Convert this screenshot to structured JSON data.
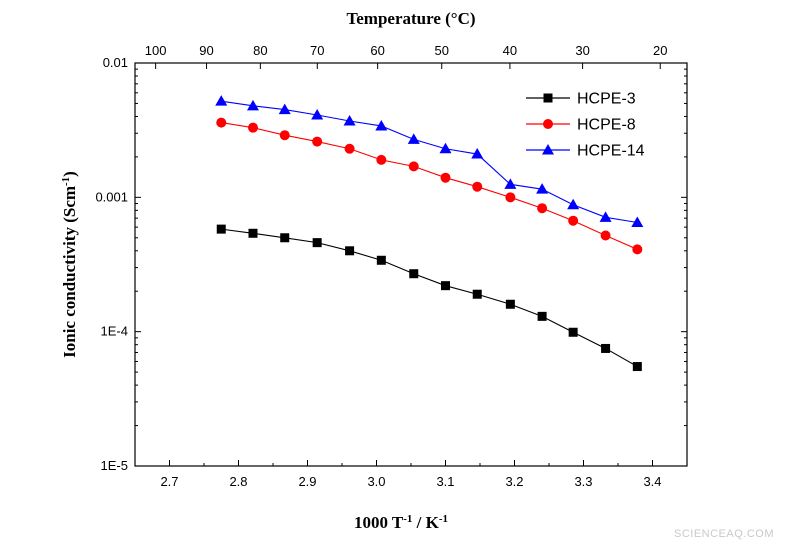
{
  "chart_data": {
    "type": "line",
    "ylabel_parts": [
      "Ionic conductivity (Scm",
      "-1",
      ")"
    ],
    "xlabel_parts": [
      "1000 T",
      "-1",
      " / K",
      "-1"
    ],
    "top_xlabel": "Temperature (°C)",
    "x_scale": "linear",
    "y_scale": "log",
    "xlim": [
      2.65,
      3.45
    ],
    "ylim": [
      1e-05,
      0.01
    ],
    "x_ticks": [
      2.7,
      2.8,
      2.9,
      3.0,
      3.1,
      3.2,
      3.3,
      3.4
    ],
    "x_tick_labels": [
      "2.7",
      "2.8",
      "2.9",
      "3.0",
      "3.1",
      "3.2",
      "3.3",
      "3.4"
    ],
    "y_ticks": [
      1e-05,
      0.0001,
      0.001,
      0.01
    ],
    "y_tick_labels": [
      "1E-5",
      "1E-4",
      "0.001",
      "0.01"
    ],
    "top_ticks_celsius": [
      100,
      90,
      80,
      70,
      60,
      50,
      40,
      30,
      20
    ],
    "top_tick_labels": [
      "100",
      "90",
      "80",
      "70",
      "60",
      "50",
      "40",
      "30",
      "20"
    ],
    "grid": false,
    "legend_position": "top-right",
    "series": [
      {
        "name": "HCPE-3",
        "color": "#000000",
        "marker": "square",
        "x": [
          2.775,
          2.821,
          2.867,
          2.914,
          2.961,
          3.007,
          3.054,
          3.1,
          3.146,
          3.194,
          3.24,
          3.285,
          3.332,
          3.378
        ],
        "y": [
          0.00058,
          0.00054,
          0.0005,
          0.00046,
          0.0004,
          0.00034,
          0.00027,
          0.00022,
          0.00019,
          0.00016,
          0.00013,
          9.9e-05,
          7.5e-05,
          5.5e-05
        ]
      },
      {
        "name": "HCPE-8",
        "color": "#ff0000",
        "marker": "circle",
        "x": [
          2.775,
          2.821,
          2.867,
          2.914,
          2.961,
          3.007,
          3.054,
          3.1,
          3.146,
          3.194,
          3.24,
          3.285,
          3.332,
          3.378
        ],
        "y": [
          0.0036,
          0.0033,
          0.0029,
          0.0026,
          0.0023,
          0.0019,
          0.0017,
          0.0014,
          0.0012,
          0.001,
          0.00083,
          0.00067,
          0.00052,
          0.00041
        ]
      },
      {
        "name": "HCPE-14",
        "color": "#0000ff",
        "marker": "triangle",
        "x": [
          2.775,
          2.821,
          2.867,
          2.914,
          2.961,
          3.007,
          3.054,
          3.1,
          3.146,
          3.194,
          3.24,
          3.285,
          3.332,
          3.378
        ],
        "y": [
          0.0052,
          0.0048,
          0.0045,
          0.0041,
          0.0037,
          0.0034,
          0.0027,
          0.0023,
          0.0021,
          0.00125,
          0.00115,
          0.00088,
          0.00071,
          0.00065
        ]
      }
    ]
  },
  "watermark": "SCIENCEAQ.COM"
}
